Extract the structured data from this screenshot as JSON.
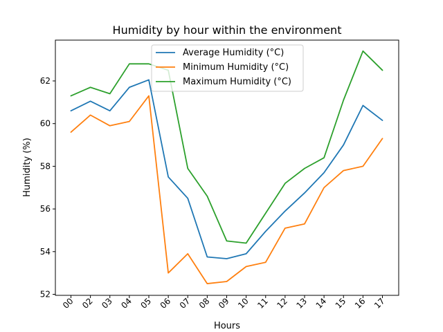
{
  "chart_data": {
    "type": "line",
    "title": "Humidity by hour within the environment",
    "xlabel": "Hours",
    "ylabel": "Humidity (%)",
    "categories": [
      "00",
      "02",
      "03",
      "04",
      "05",
      "06",
      "07",
      "08",
      "09",
      "10",
      "11",
      "12",
      "13",
      "14",
      "15",
      "16",
      "17"
    ],
    "ylim": [
      52,
      64
    ],
    "yticks": [
      52,
      54,
      56,
      58,
      60,
      62
    ],
    "grid": false,
    "legend_position": "top-center",
    "series": [
      {
        "name": "Average Humidity (°C)",
        "color": "#1f77b4",
        "values": [
          60.6,
          61.05,
          60.6,
          61.7,
          62.05,
          57.5,
          56.5,
          53.75,
          53.67,
          53.9,
          54.95,
          55.9,
          56.75,
          57.7,
          59.0,
          60.85,
          60.15
        ]
      },
      {
        "name": "Minimum Humidity (°C)",
        "color": "#ff7f0e",
        "values": [
          59.6,
          60.4,
          59.9,
          60.1,
          61.3,
          53.0,
          53.9,
          52.5,
          52.6,
          53.3,
          53.5,
          55.1,
          55.3,
          57.0,
          57.8,
          58.0,
          59.3
        ]
      },
      {
        "name": "Maximum Humidity (°C)",
        "color": "#2ca02c",
        "values": [
          61.3,
          61.7,
          61.4,
          62.8,
          62.8,
          62.5,
          57.9,
          56.6,
          54.5,
          54.4,
          55.8,
          57.2,
          57.9,
          58.4,
          61.1,
          63.4,
          62.5
        ]
      }
    ]
  }
}
